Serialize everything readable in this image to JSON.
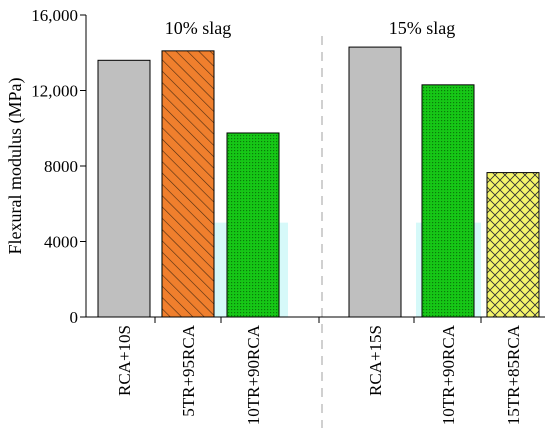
{
  "chart_data": {
    "type": "bar",
    "ylabel": "Flexural modulus (MPa)",
    "xlabel": "",
    "ylim": [
      0,
      16000
    ],
    "yticks": [
      0,
      4000,
      8000,
      12000,
      16000
    ],
    "ytick_labels": [
      "0",
      "4000",
      "8000",
      "12,000",
      "16,000"
    ],
    "groups": [
      {
        "label": "10% slag",
        "categories": [
          "RCA+10S",
          "5TR+95RCA",
          "10TR+90RCA"
        ]
      },
      {
        "label": "15% slag",
        "categories": [
          "RCA+15S",
          "10TR+90RCA",
          "15TR+85RCA"
        ]
      }
    ],
    "categories": [
      "RCA+10S",
      "5TR+95RCA",
      "10TR+90RCA",
      "RCA+15S",
      "10TR+90RCA",
      "15TR+85RCA"
    ],
    "values": [
      13600,
      14100,
      9750,
      14300,
      12300,
      7650
    ],
    "bar_styles": [
      {
        "fill": "#bfbfbf",
        "pattern": "none"
      },
      {
        "fill": "#f07f2d",
        "pattern": "diagonal"
      },
      {
        "fill": "#16c716",
        "pattern": "dots"
      },
      {
        "fill": "#bfbfbf",
        "pattern": "none"
      },
      {
        "fill": "#16c716",
        "pattern": "dots"
      },
      {
        "fill": "#f5f56a",
        "pattern": "crosshatch"
      }
    ],
    "overlay_color": "#c8f7f7",
    "overlay_level": 5000,
    "separator": "dashed",
    "grid": false
  }
}
